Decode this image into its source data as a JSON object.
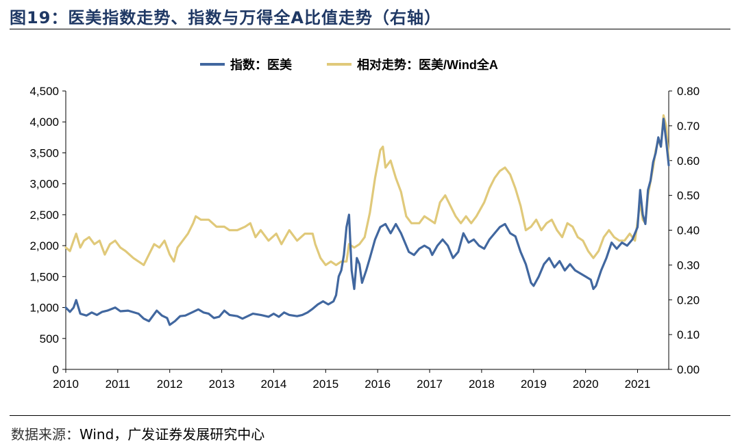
{
  "figure": {
    "title": "图19：医美指数走势、指数与万得全A比值走势（右轴）",
    "source_label": "数据来源：",
    "source_text": "Wind，广发证券发展研究中心"
  },
  "chart_data": {
    "type": "line",
    "title": "医美指数走势、指数与万得全A比值走势（右轴）",
    "legend_position": "top",
    "x_axis": {
      "range": [
        2010,
        2021.6
      ],
      "ticks": [
        2010,
        2011,
        2012,
        2013,
        2014,
        2015,
        2016,
        2017,
        2018,
        2019,
        2020,
        2021
      ]
    },
    "y_left": {
      "range": [
        0,
        4500
      ],
      "ticks": [
        0,
        500,
        1000,
        1500,
        2000,
        2500,
        3000,
        3500,
        4000,
        4500
      ],
      "tick_labels": [
        "0",
        "500",
        "1,000",
        "1,500",
        "2,000",
        "2,500",
        "3,000",
        "3,500",
        "4,000",
        "4,500"
      ]
    },
    "y_right": {
      "range": [
        0,
        0.8
      ],
      "ticks": [
        0,
        0.1,
        0.2,
        0.3,
        0.4,
        0.5,
        0.6,
        0.7,
        0.8
      ],
      "tick_labels": [
        "0.00",
        "0.10",
        "0.20",
        "0.30",
        "0.40",
        "0.50",
        "0.60",
        "0.70",
        "0.80"
      ]
    },
    "series": [
      {
        "name": "指数：医美",
        "axis": "left",
        "color": "#41679f",
        "points": [
          [
            2010.0,
            1000
          ],
          [
            2010.08,
            930
          ],
          [
            2010.15,
            1000
          ],
          [
            2010.2,
            1120
          ],
          [
            2010.28,
            900
          ],
          [
            2010.4,
            870
          ],
          [
            2010.5,
            920
          ],
          [
            2010.6,
            880
          ],
          [
            2010.7,
            930
          ],
          [
            2010.8,
            950
          ],
          [
            2010.95,
            1000
          ],
          [
            2011.05,
            940
          ],
          [
            2011.2,
            950
          ],
          [
            2011.4,
            900
          ],
          [
            2011.5,
            820
          ],
          [
            2011.6,
            780
          ],
          [
            2011.75,
            950
          ],
          [
            2011.85,
            870
          ],
          [
            2011.95,
            830
          ],
          [
            2012.0,
            720
          ],
          [
            2012.1,
            780
          ],
          [
            2012.2,
            860
          ],
          [
            2012.3,
            870
          ],
          [
            2012.45,
            930
          ],
          [
            2012.55,
            970
          ],
          [
            2012.65,
            920
          ],
          [
            2012.75,
            900
          ],
          [
            2012.85,
            830
          ],
          [
            2012.95,
            850
          ],
          [
            2013.05,
            950
          ],
          [
            2013.15,
            880
          ],
          [
            2013.3,
            860
          ],
          [
            2013.4,
            820
          ],
          [
            2013.5,
            860
          ],
          [
            2013.6,
            900
          ],
          [
            2013.75,
            880
          ],
          [
            2013.9,
            850
          ],
          [
            2014.0,
            900
          ],
          [
            2014.1,
            850
          ],
          [
            2014.2,
            920
          ],
          [
            2014.3,
            880
          ],
          [
            2014.45,
            860
          ],
          [
            2014.55,
            880
          ],
          [
            2014.65,
            920
          ],
          [
            2014.75,
            980
          ],
          [
            2014.85,
            1050
          ],
          [
            2014.95,
            1100
          ],
          [
            2015.05,
            1050
          ],
          [
            2015.15,
            1100
          ],
          [
            2015.2,
            1200
          ],
          [
            2015.25,
            1500
          ],
          [
            2015.3,
            1600
          ],
          [
            2015.35,
            1850
          ],
          [
            2015.4,
            2300
          ],
          [
            2015.45,
            2500
          ],
          [
            2015.5,
            1600
          ],
          [
            2015.55,
            1300
          ],
          [
            2015.6,
            1800
          ],
          [
            2015.65,
            1700
          ],
          [
            2015.7,
            1400
          ],
          [
            2015.78,
            1600
          ],
          [
            2015.85,
            1800
          ],
          [
            2015.95,
            2100
          ],
          [
            2016.05,
            2300
          ],
          [
            2016.15,
            2350
          ],
          [
            2016.25,
            2200
          ],
          [
            2016.35,
            2350
          ],
          [
            2016.45,
            2200
          ],
          [
            2016.55,
            2000
          ],
          [
            2016.6,
            1900
          ],
          [
            2016.7,
            1850
          ],
          [
            2016.8,
            1950
          ],
          [
            2016.9,
            2000
          ],
          [
            2017.0,
            1950
          ],
          [
            2017.05,
            1850
          ],
          [
            2017.15,
            2000
          ],
          [
            2017.25,
            2100
          ],
          [
            2017.35,
            2000
          ],
          [
            2017.45,
            1800
          ],
          [
            2017.55,
            1900
          ],
          [
            2017.65,
            2200
          ],
          [
            2017.75,
            2050
          ],
          [
            2017.85,
            2100
          ],
          [
            2017.95,
            2000
          ],
          [
            2018.05,
            1950
          ],
          [
            2018.15,
            2100
          ],
          [
            2018.25,
            2200
          ],
          [
            2018.35,
            2300
          ],
          [
            2018.45,
            2350
          ],
          [
            2018.55,
            2200
          ],
          [
            2018.65,
            2150
          ],
          [
            2018.75,
            1900
          ],
          [
            2018.85,
            1700
          ],
          [
            2018.95,
            1400
          ],
          [
            2019.0,
            1350
          ],
          [
            2019.1,
            1500
          ],
          [
            2019.2,
            1700
          ],
          [
            2019.3,
            1800
          ],
          [
            2019.4,
            1650
          ],
          [
            2019.5,
            1750
          ],
          [
            2019.6,
            1600
          ],
          [
            2019.7,
            1700
          ],
          [
            2019.8,
            1600
          ],
          [
            2019.9,
            1550
          ],
          [
            2020.0,
            1500
          ],
          [
            2020.1,
            1450
          ],
          [
            2020.15,
            1300
          ],
          [
            2020.2,
            1350
          ],
          [
            2020.3,
            1600
          ],
          [
            2020.4,
            1800
          ],
          [
            2020.5,
            2050
          ],
          [
            2020.6,
            1950
          ],
          [
            2020.7,
            2050
          ],
          [
            2020.8,
            2000
          ],
          [
            2020.9,
            2100
          ],
          [
            2021.0,
            2300
          ],
          [
            2021.05,
            2900
          ],
          [
            2021.1,
            2500
          ],
          [
            2021.15,
            2350
          ],
          [
            2021.2,
            2900
          ],
          [
            2021.25,
            3050
          ],
          [
            2021.3,
            3350
          ],
          [
            2021.35,
            3500
          ],
          [
            2021.4,
            3750
          ],
          [
            2021.45,
            3600
          ],
          [
            2021.5,
            4050
          ],
          [
            2021.55,
            3700
          ],
          [
            2021.6,
            3300
          ]
        ]
      },
      {
        "name": "相对走势：医美/Wind全A",
        "axis": "right",
        "color": "#e0c97a",
        "points": [
          [
            2010.0,
            0.35
          ],
          [
            2010.08,
            0.34
          ],
          [
            2010.15,
            0.37
          ],
          [
            2010.2,
            0.39
          ],
          [
            2010.28,
            0.35
          ],
          [
            2010.35,
            0.37
          ],
          [
            2010.45,
            0.38
          ],
          [
            2010.55,
            0.36
          ],
          [
            2010.65,
            0.37
          ],
          [
            2010.75,
            0.33
          ],
          [
            2010.85,
            0.36
          ],
          [
            2010.95,
            0.37
          ],
          [
            2011.05,
            0.35
          ],
          [
            2011.15,
            0.34
          ],
          [
            2011.3,
            0.32
          ],
          [
            2011.4,
            0.31
          ],
          [
            2011.5,
            0.3
          ],
          [
            2011.6,
            0.33
          ],
          [
            2011.7,
            0.36
          ],
          [
            2011.8,
            0.35
          ],
          [
            2011.9,
            0.37
          ],
          [
            2012.0,
            0.33
          ],
          [
            2012.08,
            0.31
          ],
          [
            2012.15,
            0.35
          ],
          [
            2012.25,
            0.37
          ],
          [
            2012.35,
            0.39
          ],
          [
            2012.45,
            0.42
          ],
          [
            2012.5,
            0.44
          ],
          [
            2012.6,
            0.43
          ],
          [
            2012.75,
            0.43
          ],
          [
            2012.9,
            0.41
          ],
          [
            2013.05,
            0.41
          ],
          [
            2013.15,
            0.4
          ],
          [
            2013.3,
            0.4
          ],
          [
            2013.45,
            0.41
          ],
          [
            2013.55,
            0.42
          ],
          [
            2013.65,
            0.38
          ],
          [
            2013.75,
            0.4
          ],
          [
            2013.9,
            0.37
          ],
          [
            2014.05,
            0.39
          ],
          [
            2014.15,
            0.36
          ],
          [
            2014.3,
            0.4
          ],
          [
            2014.45,
            0.37
          ],
          [
            2014.6,
            0.39
          ],
          [
            2014.75,
            0.39
          ],
          [
            2014.8,
            0.36
          ],
          [
            2014.9,
            0.32
          ],
          [
            2015.0,
            0.3
          ],
          [
            2015.1,
            0.31
          ],
          [
            2015.2,
            0.3
          ],
          [
            2015.3,
            0.31
          ],
          [
            2015.4,
            0.31
          ],
          [
            2015.45,
            0.36
          ],
          [
            2015.55,
            0.35
          ],
          [
            2015.65,
            0.36
          ],
          [
            2015.75,
            0.38
          ],
          [
            2015.85,
            0.45
          ],
          [
            2015.95,
            0.55
          ],
          [
            2016.05,
            0.63
          ],
          [
            2016.1,
            0.64
          ],
          [
            2016.15,
            0.58
          ],
          [
            2016.25,
            0.6
          ],
          [
            2016.35,
            0.55
          ],
          [
            2016.45,
            0.51
          ],
          [
            2016.55,
            0.44
          ],
          [
            2016.65,
            0.42
          ],
          [
            2016.8,
            0.42
          ],
          [
            2016.9,
            0.44
          ],
          [
            2017.0,
            0.43
          ],
          [
            2017.1,
            0.42
          ],
          [
            2017.2,
            0.48
          ],
          [
            2017.3,
            0.5
          ],
          [
            2017.4,
            0.47
          ],
          [
            2017.5,
            0.44
          ],
          [
            2017.6,
            0.42
          ],
          [
            2017.7,
            0.44
          ],
          [
            2017.8,
            0.42
          ],
          [
            2017.9,
            0.44
          ],
          [
            2018.05,
            0.48
          ],
          [
            2018.15,
            0.52
          ],
          [
            2018.25,
            0.55
          ],
          [
            2018.35,
            0.57
          ],
          [
            2018.45,
            0.58
          ],
          [
            2018.55,
            0.56
          ],
          [
            2018.65,
            0.52
          ],
          [
            2018.75,
            0.47
          ],
          [
            2018.85,
            0.4
          ],
          [
            2018.95,
            0.41
          ],
          [
            2019.05,
            0.43
          ],
          [
            2019.15,
            0.4
          ],
          [
            2019.25,
            0.42
          ],
          [
            2019.35,
            0.43
          ],
          [
            2019.45,
            0.4
          ],
          [
            2019.55,
            0.38
          ],
          [
            2019.65,
            0.42
          ],
          [
            2019.75,
            0.41
          ],
          [
            2019.85,
            0.38
          ],
          [
            2019.95,
            0.37
          ],
          [
            2020.05,
            0.34
          ],
          [
            2020.15,
            0.32
          ],
          [
            2020.25,
            0.34
          ],
          [
            2020.35,
            0.38
          ],
          [
            2020.45,
            0.4
          ],
          [
            2020.55,
            0.38
          ],
          [
            2020.65,
            0.37
          ],
          [
            2020.75,
            0.37
          ],
          [
            2020.85,
            0.39
          ],
          [
            2020.95,
            0.37
          ],
          [
            2021.05,
            0.48
          ],
          [
            2021.1,
            0.43
          ],
          [
            2021.15,
            0.42
          ],
          [
            2021.2,
            0.5
          ],
          [
            2021.3,
            0.58
          ],
          [
            2021.35,
            0.63
          ],
          [
            2021.4,
            0.66
          ],
          [
            2021.45,
            0.64
          ],
          [
            2021.5,
            0.73
          ],
          [
            2021.55,
            0.7
          ],
          [
            2021.6,
            0.6
          ]
        ]
      }
    ]
  }
}
